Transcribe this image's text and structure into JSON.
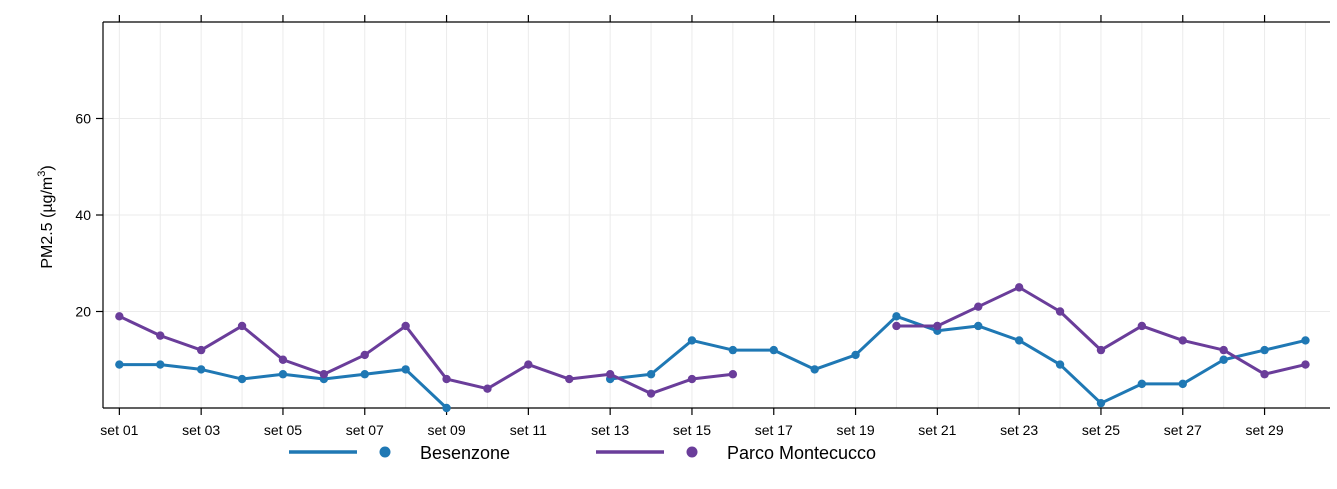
{
  "chart_data": {
    "type": "line",
    "xlabel": "",
    "ylabel": "PM2.5 (µg/m³)",
    "ylabel_parts": {
      "main": "PM2.5 (µg/m",
      "sup": "3",
      "close": ")"
    },
    "ylim": [
      0,
      80
    ],
    "yticks": [
      20,
      40,
      60
    ],
    "xlim": [
      0.6,
      30.6
    ],
    "xtick_days": [
      1,
      3,
      5,
      7,
      9,
      11,
      13,
      15,
      17,
      19,
      21,
      23,
      25,
      27,
      29
    ],
    "x_labels": [
      "set 01",
      "set 03",
      "set 05",
      "set 07",
      "set 09",
      "set 11",
      "set 13",
      "set 15",
      "set 17",
      "set 19",
      "set 21",
      "set 23",
      "set 25",
      "set 27",
      "set 29"
    ],
    "x_days": [
      1,
      2,
      3,
      4,
      5,
      6,
      7,
      8,
      9,
      10,
      11,
      12,
      13,
      14,
      15,
      16,
      17,
      18,
      19,
      20,
      21,
      22,
      23,
      24,
      25,
      26,
      27,
      28,
      29,
      30
    ],
    "grid": true,
    "legend_position": "bottom",
    "series": [
      {
        "name": "Besenzone",
        "color": "#1f78b4",
        "values": [
          9,
          9,
          8,
          6,
          7,
          6,
          7,
          8,
          0,
          null,
          null,
          null,
          6,
          7,
          14,
          12,
          12,
          8,
          11,
          19,
          16,
          17,
          14,
          9,
          1,
          5,
          5,
          10,
          12,
          14
        ]
      },
      {
        "name": "Parco Montecucco",
        "color": "#6a3d9a",
        "values": [
          19,
          15,
          12,
          17,
          10,
          7,
          11,
          17,
          6,
          4,
          9,
          6,
          7,
          3,
          6,
          7,
          null,
          null,
          null,
          17,
          17,
          21,
          25,
          20,
          12,
          17,
          14,
          12,
          7,
          9
        ]
      }
    ]
  }
}
